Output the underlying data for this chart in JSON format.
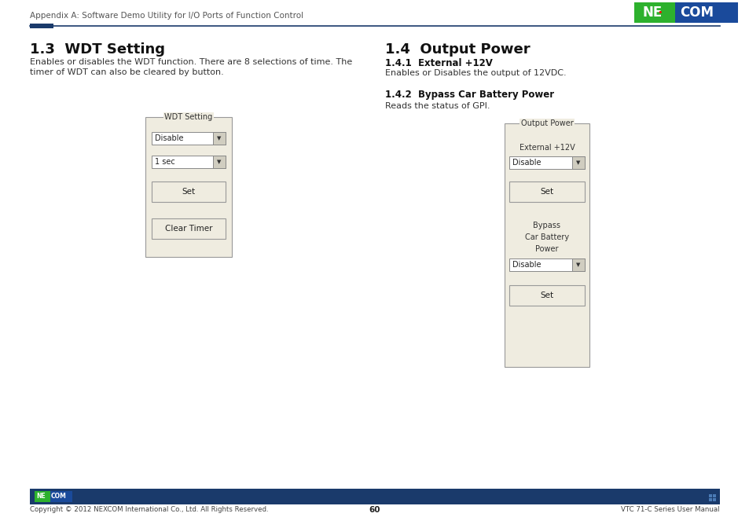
{
  "bg_color": "#ffffff",
  "header_text": "Appendix A: Software Demo Utility for I/O Ports of Function Control",
  "footer_text_left": "Copyright © 2012 NEXCOM International Co., Ltd. All Rights Reserved.",
  "footer_text_center": "60",
  "footer_text_right": "VTC 71-C Series User Manual",
  "section1_title": "1.3  WDT Setting",
  "section1_body1": "Enables or disables the WDT function. There are 8 selections of time. The",
  "section1_body2": "timer of WDT can also be cleared by button.",
  "section2_title": "1.4  Output Power",
  "section2_sub1": "1.4.1  External +12V",
  "section2_body1": "Enables or Disables the output of 12VDC.",
  "section2_sub2": "1.4.2  Bypass Car Battery Power",
  "section2_body2": "Reads the status of GPI.",
  "wdt_panel_label": "WDT Setting",
  "wdt_dropdown1": "Disable",
  "wdt_dropdown2": "1 sec",
  "wdt_btn1": "Set",
  "wdt_btn2": "Clear Timer",
  "out_panel_label": "Output Power",
  "out_ext_label": "External +12V",
  "out_dropdown1": "Disable",
  "out_btn1": "Set",
  "out_bypass_label1": "Bypass",
  "out_bypass_label2": "Car Battery",
  "out_bypass_label3": "Power",
  "out_dropdown2": "Disable",
  "out_btn2": "Set",
  "panel_bg": "#efece0",
  "panel_border": "#aaaaaa",
  "blue_dark": "#1a3a6b",
  "text_gray": "#555555",
  "text_dark": "#222222"
}
